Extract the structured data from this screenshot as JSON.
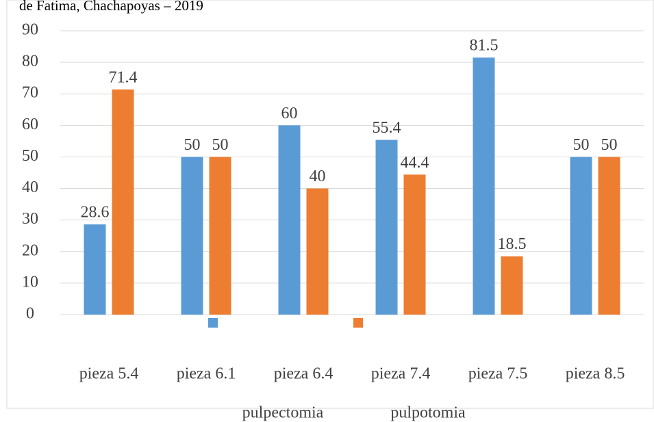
{
  "chart_data": {
    "type": "bar",
    "title": "de Fatima, Chachapoyas – 2019",
    "categories": [
      "pieza 5.4",
      "pieza 6.1",
      "pieza 6.4",
      "pieza 7.4",
      "pieza 7.5",
      "pieza 8.5"
    ],
    "series": [
      {
        "name": "pulpectomia",
        "color": "#5b9bd5",
        "values": [
          28.6,
          50,
          60,
          55.4,
          81.5,
          50
        ]
      },
      {
        "name": "pulpotomia",
        "color": "#ed7d31",
        "values": [
          71.4,
          50,
          40,
          44.4,
          18.5,
          50
        ]
      }
    ],
    "ylim": [
      0,
      90
    ],
    "yticks": [
      0,
      10,
      20,
      30,
      40,
      50,
      60,
      70,
      80,
      90
    ],
    "grid": true,
    "legend": "bottom"
  }
}
